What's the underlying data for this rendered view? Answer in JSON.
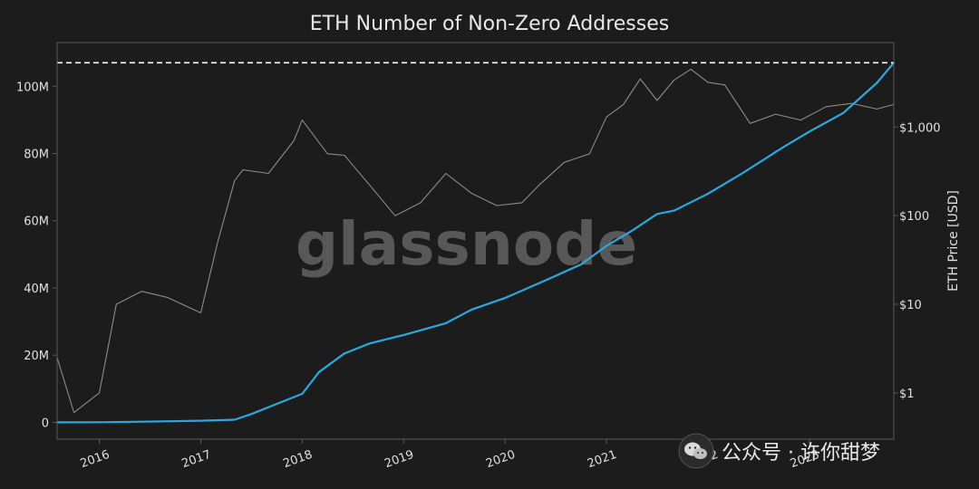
{
  "watermark": {
    "brand": "glassnode",
    "channel": "公众号 · 许你甜梦",
    "channel_icon": "wechat-icon"
  },
  "colors": {
    "background": "#1c1c1c",
    "axis": "#5a5a5a",
    "text": "#e0e0e0",
    "addresses": "#2aa9e0",
    "price": "#8c8c8c",
    "ath_line": "#ffffff"
  },
  "chart_data": {
    "type": "line",
    "title": "ETH Number of Non-Zero Addresses",
    "x_ticks": [
      "2016",
      "2017",
      "2018",
      "2019",
      "2020",
      "2021",
      "2022",
      "2023"
    ],
    "x_range": [
      "2015-08",
      "2023-11"
    ],
    "left_axis": {
      "label": "",
      "ticks": [
        "0",
        "20M",
        "40M",
        "60M",
        "80M",
        "100M"
      ],
      "tick_values": [
        0,
        20000000,
        40000000,
        60000000,
        80000000,
        100000000
      ],
      "range": [
        -5000000,
        113000000
      ]
    },
    "right_axis": {
      "label": "ETH Price [USD]",
      "scale": "log",
      "ticks": [
        "$1",
        "$10",
        "$100",
        "$1,000"
      ],
      "tick_values": [
        1,
        10,
        100,
        1000
      ],
      "range": [
        0.3,
        9000
      ]
    },
    "reference_line": {
      "axis": "left",
      "value": 107000000,
      "style": "dashed"
    },
    "grid": false,
    "series": [
      {
        "axis": "left",
        "color": "#2aa9e0",
        "x": [
          "2015-08",
          "2016-01",
          "2016-06",
          "2017-01",
          "2017-05",
          "2017-07",
          "2017-10",
          "2018-01",
          "2018-03",
          "2018-06",
          "2018-09",
          "2019-01",
          "2019-06",
          "2019-09",
          "2020-01",
          "2020-06",
          "2020-10",
          "2021-01",
          "2021-04",
          "2021-07",
          "2021-09",
          "2022-01",
          "2022-05",
          "2022-10",
          "2023-01",
          "2023-05",
          "2023-09",
          "2023-11"
        ],
        "y": [
          0,
          50000,
          200000,
          500000,
          800000,
          2500000,
          5500000,
          8500000,
          15000000,
          20500000,
          23500000,
          26000000,
          29500000,
          33500000,
          37000000,
          42500000,
          47000000,
          52500000,
          57000000,
          62000000,
          63000000,
          68000000,
          74000000,
          82000000,
          86500000,
          92000000,
          101000000,
          107000000
        ]
      },
      {
        "axis": "right",
        "color": "#8c8c8c",
        "x": [
          "2015-08",
          "2015-10",
          "2016-01",
          "2016-03",
          "2016-06",
          "2016-09",
          "2017-01",
          "2017-03",
          "2017-05",
          "2017-06",
          "2017-09",
          "2017-12",
          "2018-01",
          "2018-04",
          "2018-06",
          "2018-09",
          "2018-12",
          "2019-03",
          "2019-06",
          "2019-09",
          "2019-12",
          "2020-03",
          "2020-05",
          "2020-08",
          "2020-11",
          "2021-01",
          "2021-03",
          "2021-05",
          "2021-07",
          "2021-09",
          "2021-11",
          "2022-01",
          "2022-03",
          "2022-06",
          "2022-09",
          "2022-12",
          "2023-03",
          "2023-06",
          "2023-09",
          "2023-11"
        ],
        "y": [
          2.5,
          0.6,
          1.0,
          10,
          14,
          12,
          8,
          50,
          250,
          330,
          300,
          700,
          1200,
          500,
          480,
          220,
          100,
          140,
          300,
          180,
          130,
          140,
          220,
          400,
          500,
          1300,
          1800,
          3500,
          2000,
          3400,
          4500,
          3200,
          3000,
          1100,
          1400,
          1200,
          1700,
          1850,
          1600,
          1800
        ]
      }
    ]
  }
}
